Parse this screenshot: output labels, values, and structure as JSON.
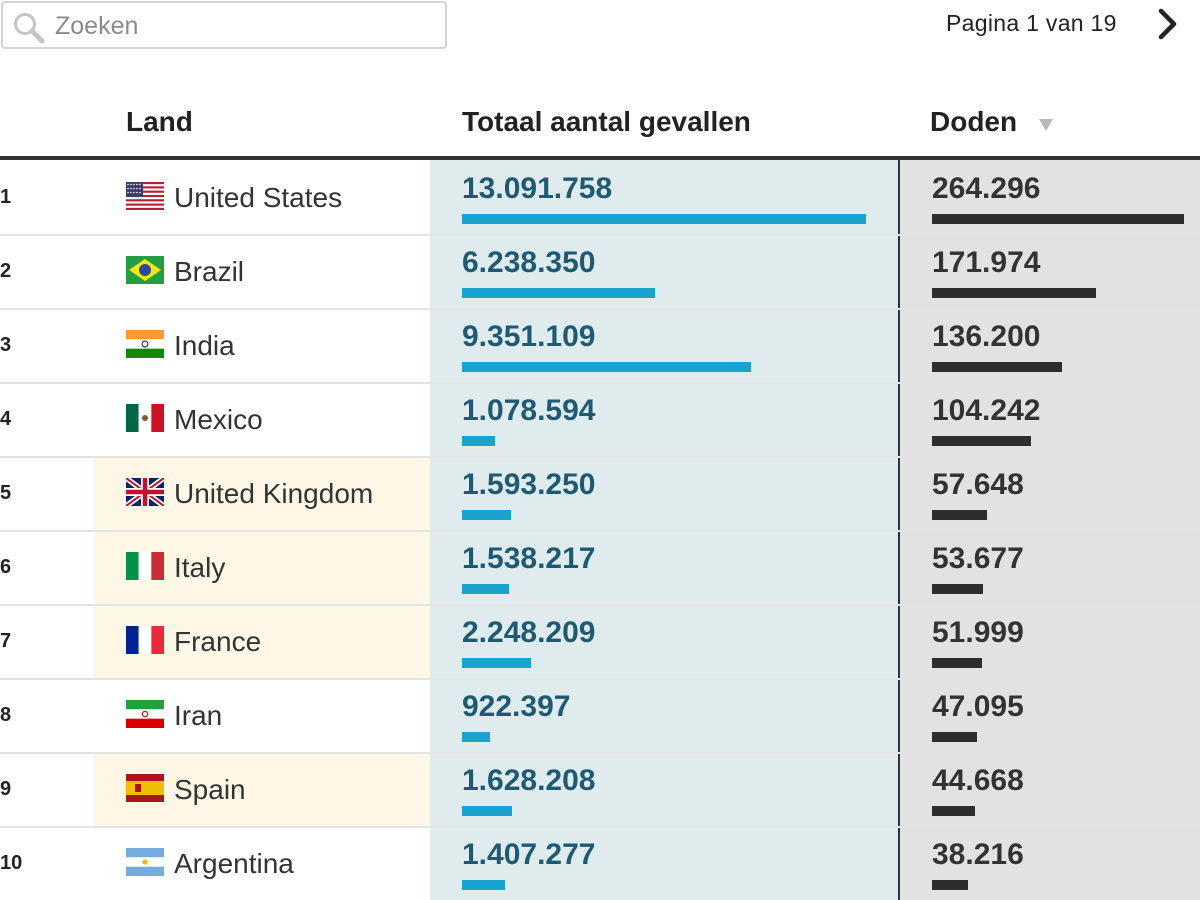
{
  "search": {
    "placeholder": "Zoeken",
    "value": ""
  },
  "pager": {
    "label": "Pagina 1 van 19"
  },
  "table": {
    "headers": {
      "land": "Land",
      "cases": "Totaal aantal gevallen",
      "deaths": "Doden"
    },
    "sort": {
      "column": "deaths",
      "direction": "descending"
    },
    "max_cases": 13091758,
    "max_deaths": 264296,
    "rows": [
      {
        "rank": "1",
        "country": "United States",
        "flag": "us-flag",
        "cases": "13.091.758",
        "cases_num": 13091758,
        "deaths": "264.296",
        "deaths_num": 264296,
        "highlight": false
      },
      {
        "rank": "2",
        "country": "Brazil",
        "flag": "br-flag",
        "cases": "6.238.350",
        "cases_num": 6238350,
        "deaths": "171.974",
        "deaths_num": 171974,
        "highlight": false
      },
      {
        "rank": "3",
        "country": "India",
        "flag": "in-flag",
        "cases": "9.351.109",
        "cases_num": 9351109,
        "deaths": "136.200",
        "deaths_num": 136200,
        "highlight": false
      },
      {
        "rank": "4",
        "country": "Mexico",
        "flag": "mx-flag",
        "cases": "1.078.594",
        "cases_num": 1078594,
        "deaths": "104.242",
        "deaths_num": 104242,
        "highlight": false
      },
      {
        "rank": "5",
        "country": "United Kingdom",
        "flag": "gb-flag",
        "cases": "1.593.250",
        "cases_num": 1593250,
        "deaths": "57.648",
        "deaths_num": 57648,
        "highlight": true
      },
      {
        "rank": "6",
        "country": "Italy",
        "flag": "it-flag",
        "cases": "1.538.217",
        "cases_num": 1538217,
        "deaths": "53.677",
        "deaths_num": 53677,
        "highlight": true
      },
      {
        "rank": "7",
        "country": "France",
        "flag": "fr-flag",
        "cases": "2.248.209",
        "cases_num": 2248209,
        "deaths": "51.999",
        "deaths_num": 51999,
        "highlight": true
      },
      {
        "rank": "8",
        "country": "Iran",
        "flag": "ir-flag",
        "cases": "922.397",
        "cases_num": 922397,
        "deaths": "47.095",
        "deaths_num": 47095,
        "highlight": false
      },
      {
        "rank": "9",
        "country": "Spain",
        "flag": "es-flag",
        "cases": "1.628.208",
        "cases_num": 1628208,
        "deaths": "44.668",
        "deaths_num": 44668,
        "highlight": true
      },
      {
        "rank": "10",
        "country": "Argentina",
        "flag": "ar-flag",
        "cases": "1.407.277",
        "cases_num": 1407277,
        "deaths": "38.216",
        "deaths_num": 38216,
        "highlight": false
      }
    ]
  },
  "colors": {
    "cases_bar": "#1aa3cf",
    "deaths_bar": "#2d2d2d",
    "cases_text": "#1c5b73",
    "cases_bg": "#e0ebee",
    "deaths_bg": "#e2e2e2",
    "row_highlight": "#fdf7e6"
  }
}
